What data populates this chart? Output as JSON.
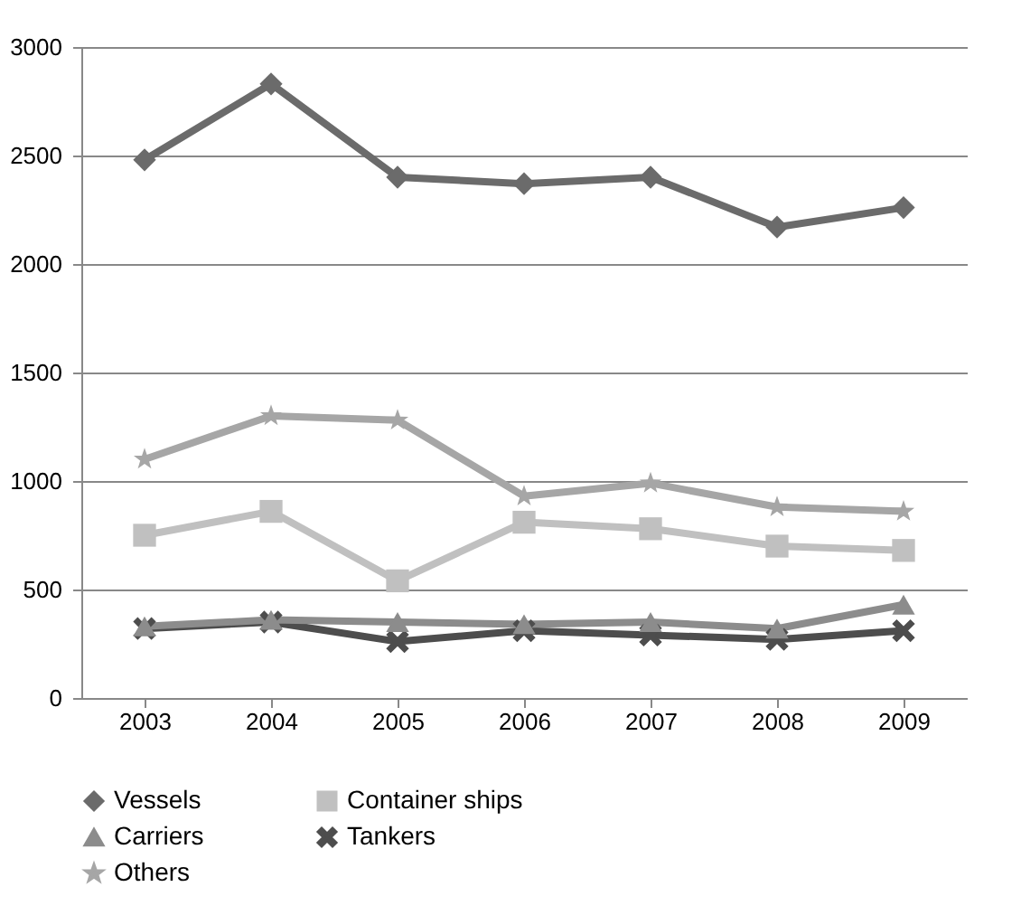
{
  "chart_data": {
    "type": "line",
    "categories": [
      "2003",
      "2004",
      "2005",
      "2006",
      "2007",
      "2008",
      "2009"
    ],
    "ylim": [
      0,
      3000
    ],
    "yticks": [
      0,
      500,
      1000,
      1500,
      2000,
      2500,
      3000
    ],
    "grid": "y",
    "legend": "bottom",
    "series": [
      {
        "name": "Vessels",
        "color": "#6b6b6b",
        "marker": "diamond",
        "values": [
          2480,
          2830,
          2400,
          2370,
          2400,
          2170,
          2260
        ]
      },
      {
        "name": "Container ships",
        "color": "#c0c0c0",
        "marker": "square",
        "values": [
          750,
          860,
          540,
          810,
          780,
          700,
          680
        ]
      },
      {
        "name": "Carriers",
        "color": "#8c8c8c",
        "marker": "triangle",
        "values": [
          330,
          360,
          350,
          340,
          350,
          320,
          430
        ]
      },
      {
        "name": "Tankers",
        "color": "#4d4d4d",
        "marker": "cross",
        "values": [
          320,
          350,
          260,
          310,
          290,
          270,
          310
        ]
      },
      {
        "name": "Others",
        "color": "#a6a6a6",
        "marker": "star",
        "values": [
          1100,
          1300,
          1280,
          930,
          990,
          880,
          860
        ]
      }
    ]
  }
}
